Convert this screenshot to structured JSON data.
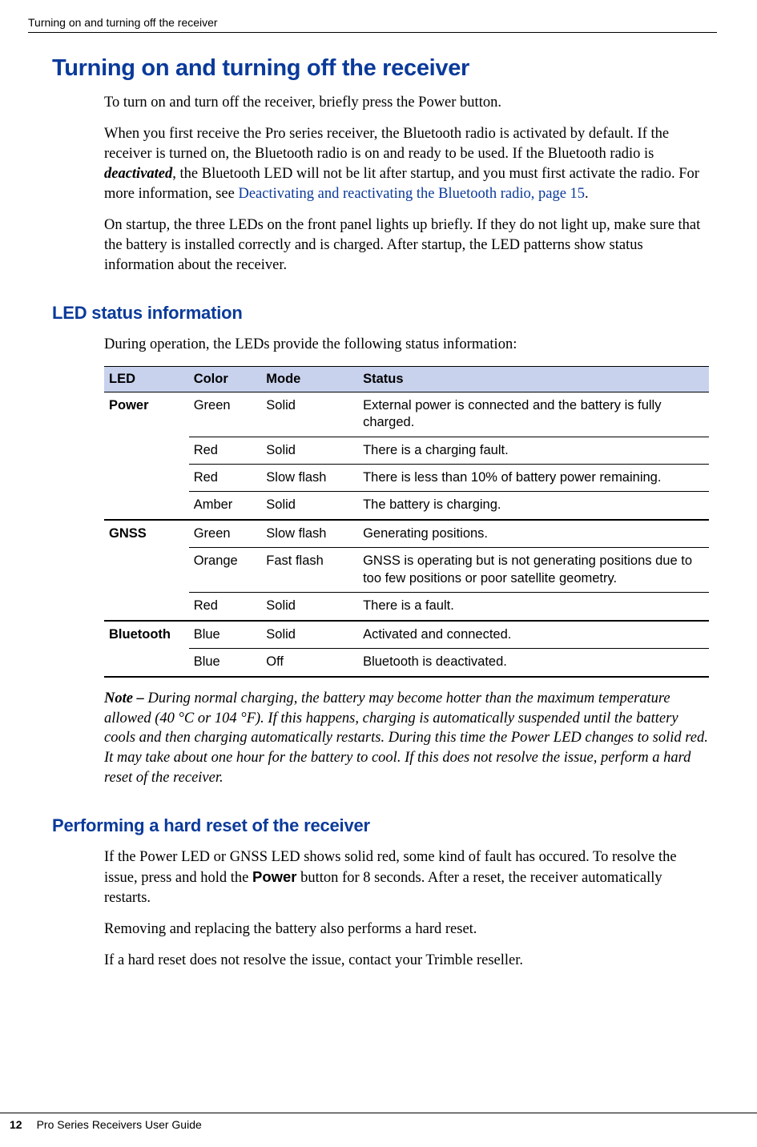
{
  "runningHead": "Turning on and turning off the receiver",
  "h1": "Turning on and turning off the receiver",
  "p1": "To turn on and turn off the receiver, briefly press the Power button.",
  "p2a": "When you first receive the Pro series receiver, the Bluetooth radio is activated by default. If the receiver is turned on, the Bluetooth radio is on and ready to be used. If the Bluetooth radio is ",
  "p2_bi": "deactivated",
  "p2b": ", the Bluetooth LED will not be lit after startup, and you must first activate the radio. For more information, see ",
  "p2_link": "Deactivating and reactivating the Bluetooth radio, page 15",
  "p2c": ".",
  "p3": "On startup, the three LEDs on the front panel lights up briefly. If they do not light up, make sure that the battery is installed correctly and is charged. After startup, the LED patterns show status information about the receiver.",
  "h2a": "LED status information",
  "p4": "During operation, the LEDs provide the following status information:",
  "table": {
    "header_bg": "#c8d2ed",
    "columns": [
      "LED",
      "Color",
      "Mode",
      "Status"
    ],
    "col_widths_pct": [
      14,
      12,
      16,
      58
    ],
    "groups": [
      {
        "led": "Power",
        "rows": [
          {
            "color": "Green",
            "mode": "Solid",
            "status": "External power is connected and the battery is fully charged."
          },
          {
            "color": "Red",
            "mode": "Solid",
            "status": "There is a charging fault."
          },
          {
            "color": "Red",
            "mode": "Slow flash",
            "status": "There is less than 10% of battery power remaining."
          },
          {
            "color": "Amber",
            "mode": "Solid",
            "status": "The battery is charging."
          }
        ]
      },
      {
        "led": "GNSS",
        "rows": [
          {
            "color": "Green",
            "mode": "Slow flash",
            "status": "Generating positions."
          },
          {
            "color": "Orange",
            "mode": "Fast flash",
            "status": "GNSS is operating but is not generating positions due to too few positions or poor satellite geometry."
          },
          {
            "color": "Red",
            "mode": "Solid",
            "status": "There is a fault."
          }
        ]
      },
      {
        "led": "Bluetooth",
        "rows": [
          {
            "color": "Blue",
            "mode": "Solid",
            "status": "Activated and connected."
          },
          {
            "color": "Blue",
            "mode": "Off",
            "status": "Bluetooth is deactivated."
          }
        ]
      }
    ]
  },
  "note_label": "Note – ",
  "note_body": "During normal charging, the battery may become hotter than the maximum temperature allowed (40 °C or 104 °F). If this happens, charging is automatically suspended until the battery cools and then charging automatically restarts. During this time the Power LED changes to solid red. It may take about one hour for the battery to cool. If this does not resolve the issue, perform a hard reset of the receiver.",
  "h2b": "Performing a hard reset of the receiver",
  "p5a": "If the Power LED or GNSS LED shows solid red, some kind of fault has occured. To resolve the issue, press and hold the ",
  "p5_bold": "Power",
  "p5b": " button for 8 seconds. After a reset, the receiver automatically restarts.",
  "p6": "Removing and replacing the battery also performs a hard reset.",
  "p7": "If a hard reset does not resolve the issue, contact your Trimble reseller.",
  "footer": {
    "pageNumber": "12",
    "title": "Pro Series Receivers User Guide"
  },
  "colors": {
    "heading": "#0a3a9a",
    "link": "#0a3a9a",
    "text": "#000000",
    "bg": "#ffffff"
  },
  "fontsizes_pt": {
    "h1": 22,
    "h2": 17,
    "body": 14,
    "table": 12,
    "running": 10
  }
}
